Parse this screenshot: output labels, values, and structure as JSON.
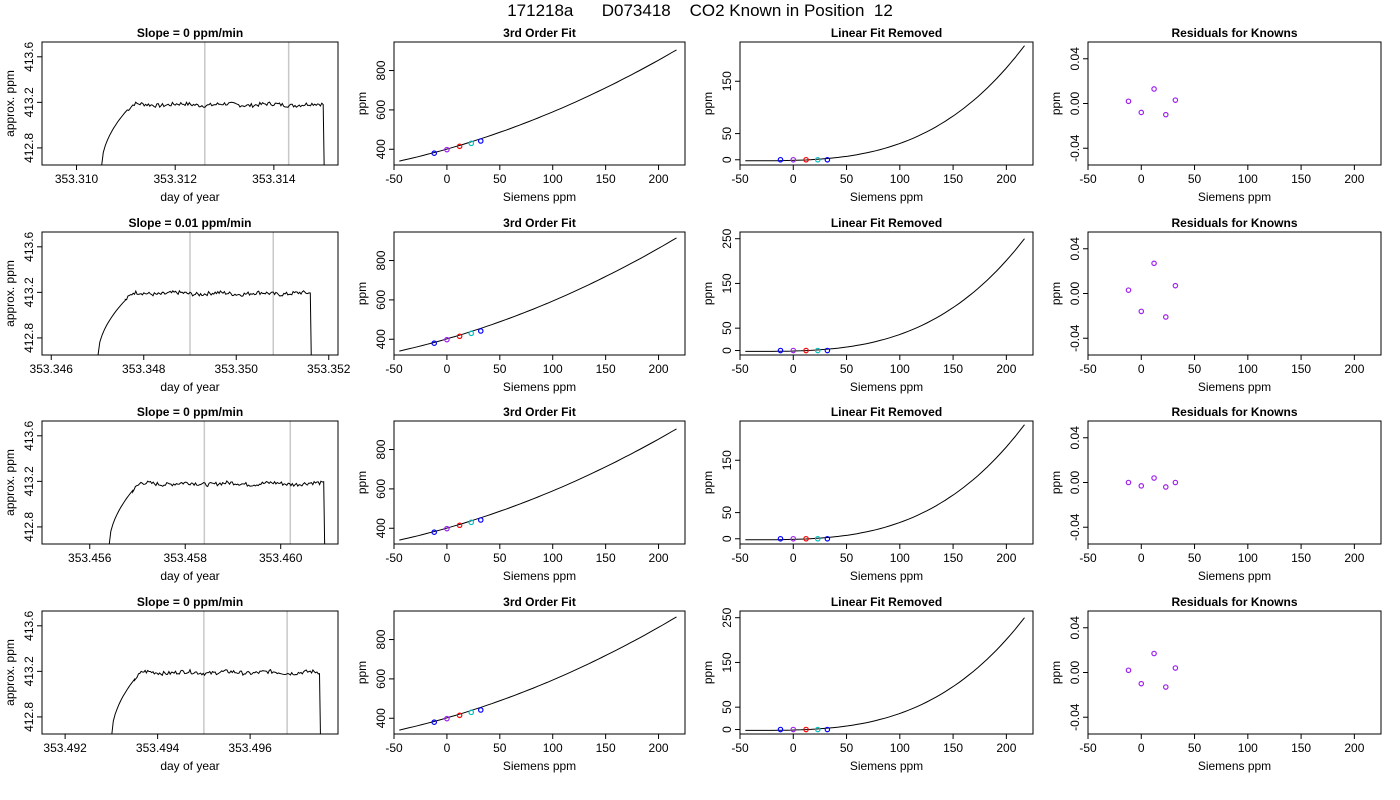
{
  "header": {
    "title": "171218a      D073418    CO2 Known in Position  12"
  },
  "colors": {
    "line": "#000000",
    "divider": "#c8c8c8",
    "point_blue": "#0000ff",
    "point_purple": "#a020f0",
    "point_red": "#ff0000",
    "point_cyan": "#00bfbf"
  },
  "chart_data": [
    {
      "type": "line",
      "row": 1,
      "title": "Slope =  0  ppm/min",
      "xlabel": "day of year",
      "ylabel": "approx. ppm",
      "xlim": [
        353.3093,
        353.3153
      ],
      "ylim": [
        412.65,
        413.73
      ],
      "xticks": [
        "353.310",
        "353.312",
        "353.314"
      ],
      "yticks": [
        "412.8",
        "413.2",
        "413.6"
      ],
      "trace": {
        "start": 353.3105,
        "rise_end": 353.311,
        "end": 353.315,
        "plateau": 413.18
      },
      "vlines": [
        353.3126,
        353.3143
      ],
      "grid": false
    },
    {
      "type": "line",
      "row": 1,
      "title": "3rd Order Fit",
      "xlabel": "Siemens ppm",
      "ylabel": "ppm",
      "xlim": [
        -50,
        225
      ],
      "ylim": [
        320,
        945
      ],
      "xticks": [
        "-50",
        "0",
        "50",
        "100",
        "150",
        "200"
      ],
      "yticks": [
        "400",
        "600",
        "800"
      ],
      "curve": {
        "x0": -45,
        "y0": 340,
        "x1": 217,
        "y1": 905
      },
      "points": [
        {
          "x": -12,
          "y": 380
        },
        {
          "x": 0,
          "y": 398
        },
        {
          "x": 12,
          "y": 415
        },
        {
          "x": 23,
          "y": 430
        },
        {
          "x": 32,
          "y": 442
        }
      ]
    },
    {
      "type": "line",
      "row": 1,
      "title": "Linear Fit Removed",
      "xlabel": "Siemens ppm",
      "ylabel": "ppm",
      "xlim": [
        -50,
        225
      ],
      "ylim": [
        -10,
        225
      ],
      "xticks": [
        "-50",
        "0",
        "50",
        "100",
        "150",
        "200"
      ],
      "yticks": [
        "0",
        "50",
        "150"
      ],
      "curve": {
        "x0": -45,
        "y0": -2,
        "x1": 217,
        "y1": 218
      },
      "points": [
        {
          "x": -12,
          "y": 0
        },
        {
          "x": 0,
          "y": 0
        },
        {
          "x": 12,
          "y": 0
        },
        {
          "x": 23,
          "y": 0
        },
        {
          "x": 32,
          "y": 0
        }
      ]
    },
    {
      "type": "scatter",
      "row": 1,
      "title": "Residuals for Knowns",
      "xlabel": "Siemens ppm",
      "ylabel": "ppm",
      "xlim": [
        -50,
        225
      ],
      "ylim": [
        -0.055,
        0.055
      ],
      "xticks": [
        "-50",
        "0",
        "50",
        "100",
        "150",
        "200"
      ],
      "yticks": [
        "-0.04",
        "0.00",
        "0.04"
      ],
      "points": [
        {
          "x": -12,
          "y": 0.002
        },
        {
          "x": 0,
          "y": -0.008
        },
        {
          "x": 12,
          "y": 0.013
        },
        {
          "x": 23,
          "y": -0.01
        },
        {
          "x": 32,
          "y": 0.003
        }
      ]
    },
    {
      "type": "line",
      "row": 2,
      "title": "Slope =  0.01  ppm/min",
      "xlabel": "day of year",
      "ylabel": "approx. ppm",
      "xlim": [
        353.3458,
        353.3522
      ],
      "ylim": [
        412.65,
        413.73
      ],
      "xticks": [
        "353.346",
        "353.348",
        "353.350",
        "353.352"
      ],
      "yticks": [
        "412.8",
        "413.2",
        "413.6"
      ],
      "trace": {
        "start": 353.347,
        "rise_end": 353.3476,
        "end": 353.3516,
        "plateau": 413.19
      },
      "vlines": [
        353.349,
        353.3508
      ],
      "grid": false
    },
    {
      "type": "line",
      "row": 2,
      "title": "3rd Order Fit",
      "xlabel": "Siemens ppm",
      "ylabel": "ppm",
      "xlim": [
        -50,
        225
      ],
      "ylim": [
        320,
        945
      ],
      "xticks": [
        "-50",
        "0",
        "50",
        "100",
        "150",
        "200"
      ],
      "yticks": [
        "400",
        "600",
        "800"
      ],
      "curve": {
        "x0": -45,
        "y0": 340,
        "x1": 217,
        "y1": 915
      },
      "points": [
        {
          "x": -12,
          "y": 380
        },
        {
          "x": 0,
          "y": 398
        },
        {
          "x": 12,
          "y": 415
        },
        {
          "x": 23,
          "y": 430
        },
        {
          "x": 32,
          "y": 442
        }
      ]
    },
    {
      "type": "line",
      "row": 2,
      "title": "Linear Fit Removed",
      "xlabel": "Siemens ppm",
      "ylabel": "ppm",
      "xlim": [
        -50,
        225
      ],
      "ylim": [
        -10,
        265
      ],
      "xticks": [
        "-50",
        "0",
        "50",
        "100",
        "150",
        "200"
      ],
      "yticks": [
        "0",
        "50",
        "150",
        "250"
      ],
      "curve": {
        "x0": -45,
        "y0": -2,
        "x1": 217,
        "y1": 250
      },
      "points": [
        {
          "x": -12,
          "y": 0
        },
        {
          "x": 0,
          "y": 0
        },
        {
          "x": 12,
          "y": 0
        },
        {
          "x": 23,
          "y": 0
        },
        {
          "x": 32,
          "y": 0
        }
      ]
    },
    {
      "type": "scatter",
      "row": 2,
      "title": "Residuals for Knowns",
      "xlabel": "Siemens ppm",
      "ylabel": "ppm",
      "xlim": [
        -50,
        225
      ],
      "ylim": [
        -0.055,
        0.055
      ],
      "xticks": [
        "-50",
        "0",
        "50",
        "100",
        "150",
        "200"
      ],
      "yticks": [
        "-0.04",
        "0.00",
        "0.04"
      ],
      "points": [
        {
          "x": -12,
          "y": 0.003
        },
        {
          "x": 0,
          "y": -0.016
        },
        {
          "x": 12,
          "y": 0.027
        },
        {
          "x": 23,
          "y": -0.021
        },
        {
          "x": 32,
          "y": 0.007
        }
      ]
    },
    {
      "type": "line",
      "row": 3,
      "title": "Slope =  0  ppm/min",
      "xlabel": "day of year",
      "ylabel": "approx. ppm",
      "xlim": [
        353.455,
        353.4612
      ],
      "ylim": [
        412.65,
        413.73
      ],
      "xticks": [
        "353.456",
        "353.458",
        "353.460"
      ],
      "yticks": [
        "412.8",
        "413.2",
        "413.6"
      ],
      "trace": {
        "start": 353.4564,
        "rise_end": 353.4569,
        "end": 353.4609,
        "plateau": 413.18
      },
      "vlines": [
        353.4584,
        353.4602
      ],
      "grid": false
    },
    {
      "type": "line",
      "row": 3,
      "title": "3rd Order Fit",
      "xlabel": "Siemens ppm",
      "ylabel": "ppm",
      "xlim": [
        -50,
        225
      ],
      "ylim": [
        320,
        945
      ],
      "xticks": [
        "-50",
        "0",
        "50",
        "100",
        "150",
        "200"
      ],
      "yticks": [
        "400",
        "600",
        "800"
      ],
      "curve": {
        "x0": -45,
        "y0": 340,
        "x1": 217,
        "y1": 905
      },
      "points": [
        {
          "x": -12,
          "y": 380
        },
        {
          "x": 0,
          "y": 398
        },
        {
          "x": 12,
          "y": 415
        },
        {
          "x": 23,
          "y": 430
        },
        {
          "x": 32,
          "y": 442
        }
      ]
    },
    {
      "type": "line",
      "row": 3,
      "title": "Linear Fit Removed",
      "xlabel": "Siemens ppm",
      "ylabel": "ppm",
      "xlim": [
        -50,
        225
      ],
      "ylim": [
        -10,
        225
      ],
      "xticks": [
        "-50",
        "0",
        "50",
        "100",
        "150",
        "200"
      ],
      "yticks": [
        "0",
        "50",
        "150"
      ],
      "curve": {
        "x0": -45,
        "y0": -2,
        "x1": 217,
        "y1": 218
      },
      "points": [
        {
          "x": -12,
          "y": 0
        },
        {
          "x": 0,
          "y": 0
        },
        {
          "x": 12,
          "y": 0
        },
        {
          "x": 23,
          "y": 0
        },
        {
          "x": 32,
          "y": 0
        }
      ]
    },
    {
      "type": "scatter",
      "row": 3,
      "title": "Residuals for Knowns",
      "xlabel": "Siemens ppm",
      "ylabel": "ppm",
      "xlim": [
        -50,
        225
      ],
      "ylim": [
        -0.055,
        0.055
      ],
      "xticks": [
        "-50",
        "0",
        "50",
        "100",
        "150",
        "200"
      ],
      "yticks": [
        "-0.04",
        "0.00",
        "0.04"
      ],
      "points": [
        {
          "x": -12,
          "y": 0.0
        },
        {
          "x": 0,
          "y": -0.003
        },
        {
          "x": 12,
          "y": 0.004
        },
        {
          "x": 23,
          "y": -0.004
        },
        {
          "x": 32,
          "y": 0.0
        }
      ]
    },
    {
      "type": "line",
      "row": 4,
      "title": "Slope =  0  ppm/min",
      "xlabel": "day of year",
      "ylabel": "approx. ppm",
      "xlim": [
        353.4915,
        353.4979
      ],
      "ylim": [
        412.65,
        413.73
      ],
      "xticks": [
        "353.492",
        "353.494",
        "353.496"
      ],
      "yticks": [
        "412.8",
        "413.2",
        "413.6"
      ],
      "trace": {
        "start": 353.493,
        "rise_end": 353.4935,
        "end": 353.4975,
        "plateau": 413.19
      },
      "vlines": [
        353.495,
        353.4968
      ],
      "grid": false
    },
    {
      "type": "line",
      "row": 4,
      "title": "3rd Order Fit",
      "xlabel": "Siemens ppm",
      "ylabel": "ppm",
      "xlim": [
        -50,
        225
      ],
      "ylim": [
        320,
        945
      ],
      "xticks": [
        "-50",
        "0",
        "50",
        "100",
        "150",
        "200"
      ],
      "yticks": [
        "400",
        "600",
        "800"
      ],
      "curve": {
        "x0": -45,
        "y0": 340,
        "x1": 217,
        "y1": 915
      },
      "points": [
        {
          "x": -12,
          "y": 380
        },
        {
          "x": 0,
          "y": 398
        },
        {
          "x": 12,
          "y": 415
        },
        {
          "x": 23,
          "y": 430
        },
        {
          "x": 32,
          "y": 442
        }
      ]
    },
    {
      "type": "line",
      "row": 4,
      "title": "Linear Fit Removed",
      "xlabel": "Siemens ppm",
      "ylabel": "ppm",
      "xlim": [
        -50,
        225
      ],
      "ylim": [
        -10,
        265
      ],
      "xticks": [
        "-50",
        "0",
        "50",
        "100",
        "150",
        "200"
      ],
      "yticks": [
        "0",
        "50",
        "150",
        "250"
      ],
      "curve": {
        "x0": -45,
        "y0": -2,
        "x1": 217,
        "y1": 250
      },
      "points": [
        {
          "x": -12,
          "y": 0
        },
        {
          "x": 0,
          "y": 0
        },
        {
          "x": 12,
          "y": 0
        },
        {
          "x": 23,
          "y": 0
        },
        {
          "x": 32,
          "y": 0
        }
      ]
    },
    {
      "type": "scatter",
      "row": 4,
      "title": "Residuals for Knowns",
      "xlabel": "Siemens ppm",
      "ylabel": "ppm",
      "xlim": [
        -50,
        225
      ],
      "ylim": [
        -0.055,
        0.055
      ],
      "xticks": [
        "-50",
        "0",
        "50",
        "100",
        "150",
        "200"
      ],
      "yticks": [
        "-0.04",
        "0.00",
        "0.04"
      ],
      "points": [
        {
          "x": -12,
          "y": 0.002
        },
        {
          "x": 0,
          "y": -0.01
        },
        {
          "x": 12,
          "y": 0.017
        },
        {
          "x": 23,
          "y": -0.013
        },
        {
          "x": 32,
          "y": 0.004
        }
      ]
    }
  ]
}
